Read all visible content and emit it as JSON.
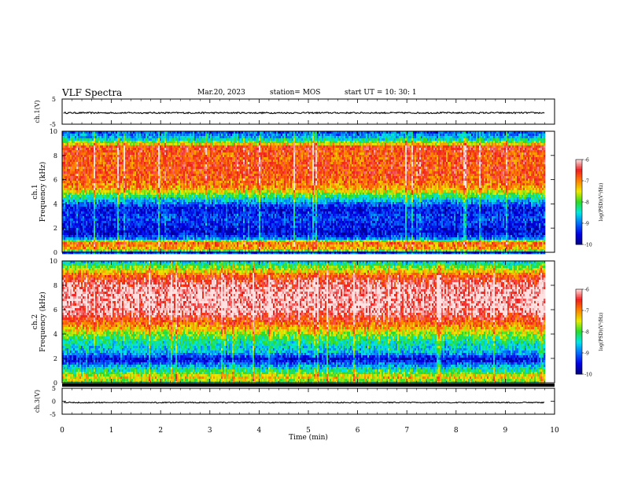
{
  "header": {
    "title": "VLF Spectra",
    "date": "Mar.20, 2023",
    "station": "station= MOS",
    "start": "start  UT =    10: 30: 1"
  },
  "chart_data": [
    {
      "type": "line",
      "name": "ch1-waveform",
      "ylabel": "ch.1(V)",
      "ylim": [
        -5,
        5
      ],
      "ytick_labels": [
        "5",
        "-5"
      ],
      "xlim": [
        0,
        10
      ],
      "baseline": -0.5,
      "amplitude": 0.3
    },
    {
      "type": "heatmap",
      "name": "ch1-spectrogram",
      "ylabel_channel": "ch.1",
      "ylabel": "Frequency (kHz)",
      "xlim": [
        0,
        10
      ],
      "ylim": [
        0,
        10
      ],
      "ytick_labels": [
        "0",
        "2",
        "4",
        "6",
        "8",
        "10"
      ],
      "data_extent_x": [
        0,
        9.8
      ],
      "colorbar": {
        "label": "log(PSD)(V²/Hz)",
        "range": [
          -10,
          -6
        ],
        "tick_labels": [
          "-6",
          "-7",
          "-8",
          "-9",
          "-10"
        ]
      },
      "profile": [
        {
          "f": 0.0,
          "v": -8.6
        },
        {
          "f": 0.3,
          "v": -7.2
        },
        {
          "f": 0.8,
          "v": -6.9
        },
        {
          "f": 1.1,
          "v": -8.9
        },
        {
          "f": 1.6,
          "v": -9.6
        },
        {
          "f": 2.2,
          "v": -9.4
        },
        {
          "f": 2.8,
          "v": -9.2
        },
        {
          "f": 3.6,
          "v": -9.5
        },
        {
          "f": 4.2,
          "v": -8.8
        },
        {
          "f": 4.8,
          "v": -7.9
        },
        {
          "f": 5.3,
          "v": -7.1
        },
        {
          "f": 6.0,
          "v": -6.8
        },
        {
          "f": 7.0,
          "v": -6.7
        },
        {
          "f": 8.0,
          "v": -6.8
        },
        {
          "f": 8.7,
          "v": -6.6
        },
        {
          "f": 9.0,
          "v": -7.6
        },
        {
          "f": 9.4,
          "v": -8.6
        },
        {
          "f": 10.0,
          "v": -9.2
        }
      ]
    },
    {
      "type": "heatmap",
      "name": "ch2-spectrogram",
      "ylabel_channel": "ch.2",
      "ylabel": "Frequency (kHz)",
      "xlim": [
        0,
        10
      ],
      "ylim": [
        0,
        10
      ],
      "ytick_labels": [
        "0",
        "2",
        "4",
        "6",
        "8",
        "10"
      ],
      "data_extent_x": [
        0,
        9.8
      ],
      "colorbar": {
        "label": "log(PSD)(V²/Hz)",
        "range": [
          -10,
          -6
        ],
        "tick_labels": [
          "-6",
          "-7",
          "-8",
          "-9",
          "-10"
        ]
      },
      "profile": [
        {
          "f": 0.0,
          "v": -8.2
        },
        {
          "f": 0.4,
          "v": -7.3
        },
        {
          "f": 0.9,
          "v": -8.1
        },
        {
          "f": 1.4,
          "v": -8.8
        },
        {
          "f": 1.9,
          "v": -9.6
        },
        {
          "f": 2.5,
          "v": -8.7
        },
        {
          "f": 3.2,
          "v": -8.4
        },
        {
          "f": 3.8,
          "v": -8.0
        },
        {
          "f": 4.4,
          "v": -7.3
        },
        {
          "f": 5.0,
          "v": -6.8
        },
        {
          "f": 5.8,
          "v": -6.2
        },
        {
          "f": 7.0,
          "v": -6.1
        },
        {
          "f": 8.2,
          "v": -6.3
        },
        {
          "f": 8.8,
          "v": -6.8
        },
        {
          "f": 9.3,
          "v": -7.6
        },
        {
          "f": 9.7,
          "v": -8.2
        },
        {
          "f": 10.0,
          "v": -8.6
        }
      ]
    },
    {
      "type": "line",
      "name": "ch3-waveform",
      "ylabel": "ch.3(V)",
      "ylim": [
        -5,
        5
      ],
      "ytick_labels": [
        "5",
        "0",
        "-5"
      ],
      "xlim": [
        0,
        10
      ],
      "xlabel": "Time  (min)",
      "xtick_labels": [
        "0",
        "1",
        "2",
        "3",
        "4",
        "5",
        "6",
        "7",
        "8",
        "9",
        "10"
      ],
      "baseline": -0.5,
      "amplitude": 0.2
    }
  ]
}
